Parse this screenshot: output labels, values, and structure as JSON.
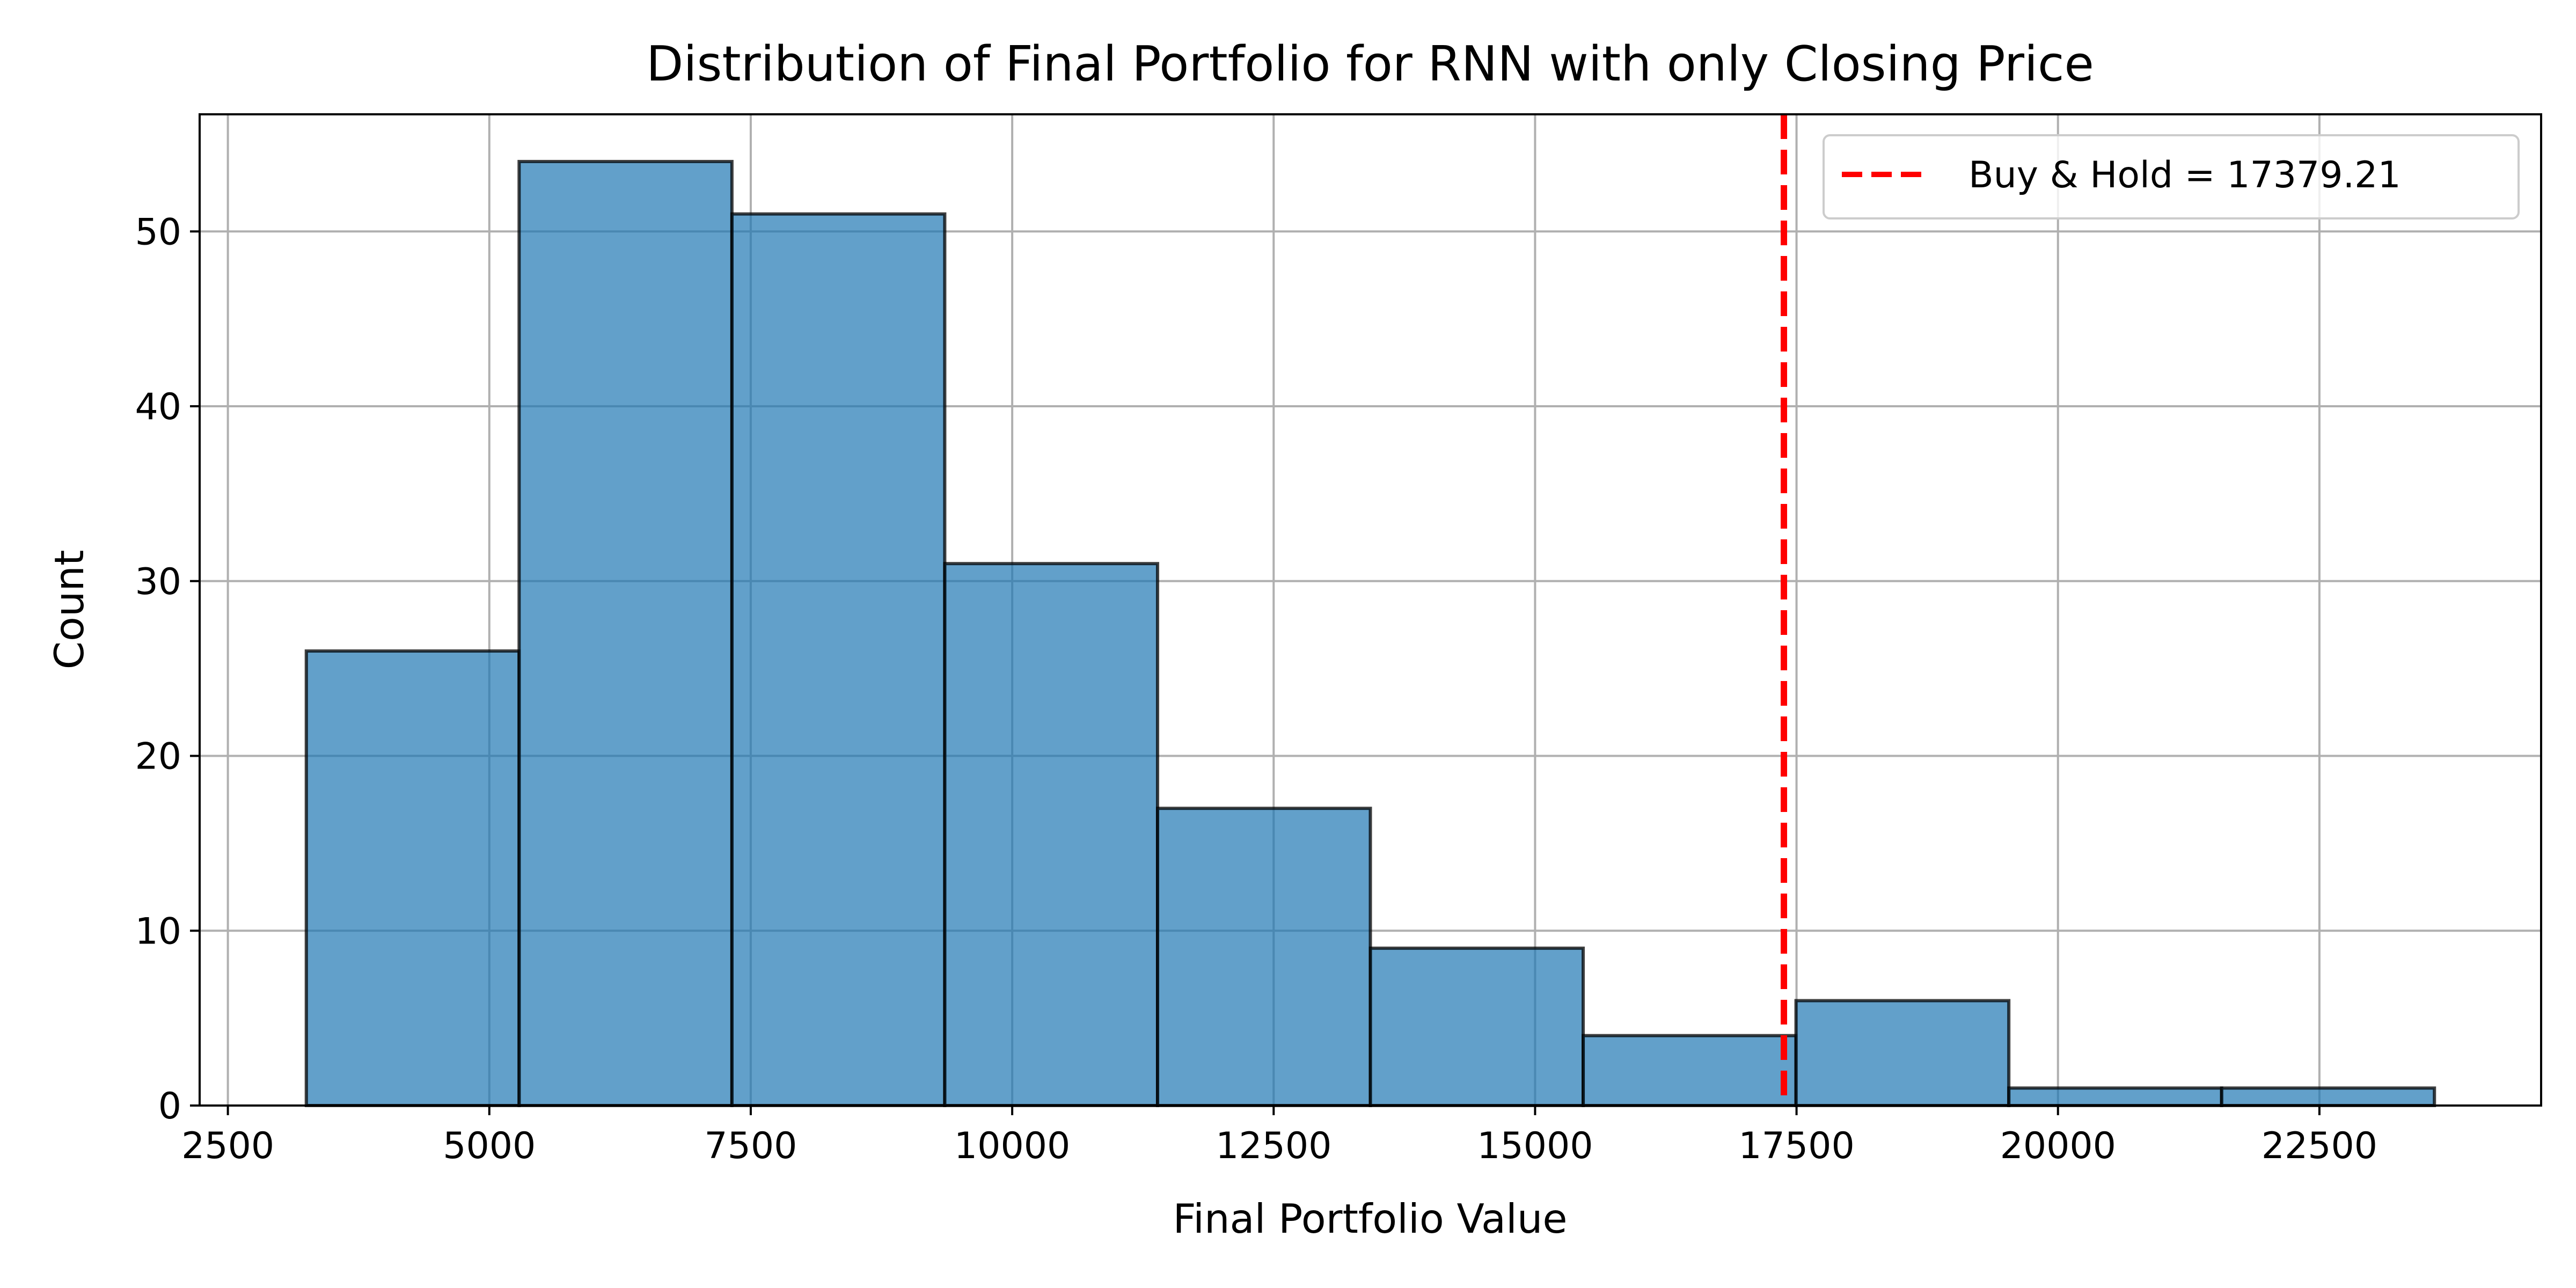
{
  "chart_data": {
    "type": "bar",
    "title": "Distribution of Final Portfolio for RNN with only Closing Price",
    "xlabel": "Final Portfolio Value",
    "ylabel": "Count",
    "bins": [
      {
        "x0": 3250,
        "x1": 5285,
        "count": 26
      },
      {
        "x0": 5285,
        "x1": 7320,
        "count": 54
      },
      {
        "x0": 7320,
        "x1": 9355,
        "count": 51
      },
      {
        "x0": 9355,
        "x1": 11390,
        "count": 31
      },
      {
        "x0": 11390,
        "x1": 13425,
        "count": 17
      },
      {
        "x0": 13425,
        "x1": 15460,
        "count": 9
      },
      {
        "x0": 15460,
        "x1": 17495,
        "count": 4
      },
      {
        "x0": 17495,
        "x1": 19530,
        "count": 6
      },
      {
        "x0": 19530,
        "x1": 21565,
        "count": 1
      },
      {
        "x0": 21565,
        "x1": 23600,
        "count": 1
      }
    ],
    "xlim": [
      2230,
      24620
    ],
    "ylim": [
      0,
      56.7
    ],
    "x_ticks": [
      2500,
      5000,
      7500,
      10000,
      12500,
      15000,
      17500,
      20000,
      22500
    ],
    "x_tick_labels": [
      "2500",
      "5000",
      "7500",
      "10000",
      "12500",
      "15000",
      "17500",
      "20000",
      "22500"
    ],
    "y_ticks": [
      0,
      10,
      20,
      30,
      40,
      50
    ],
    "y_tick_labels": [
      "0",
      "10",
      "20",
      "30",
      "40",
      "50"
    ],
    "grid": true,
    "bar_color": "#1f77b4",
    "bar_alpha": 0.7,
    "bar_edge_color": "#000000",
    "reference_line": {
      "x": 17379.21,
      "label": "Buy & Hold = 17379.21",
      "color": "#ff0000",
      "style": "dashed"
    },
    "legend_placement": "top-right"
  }
}
